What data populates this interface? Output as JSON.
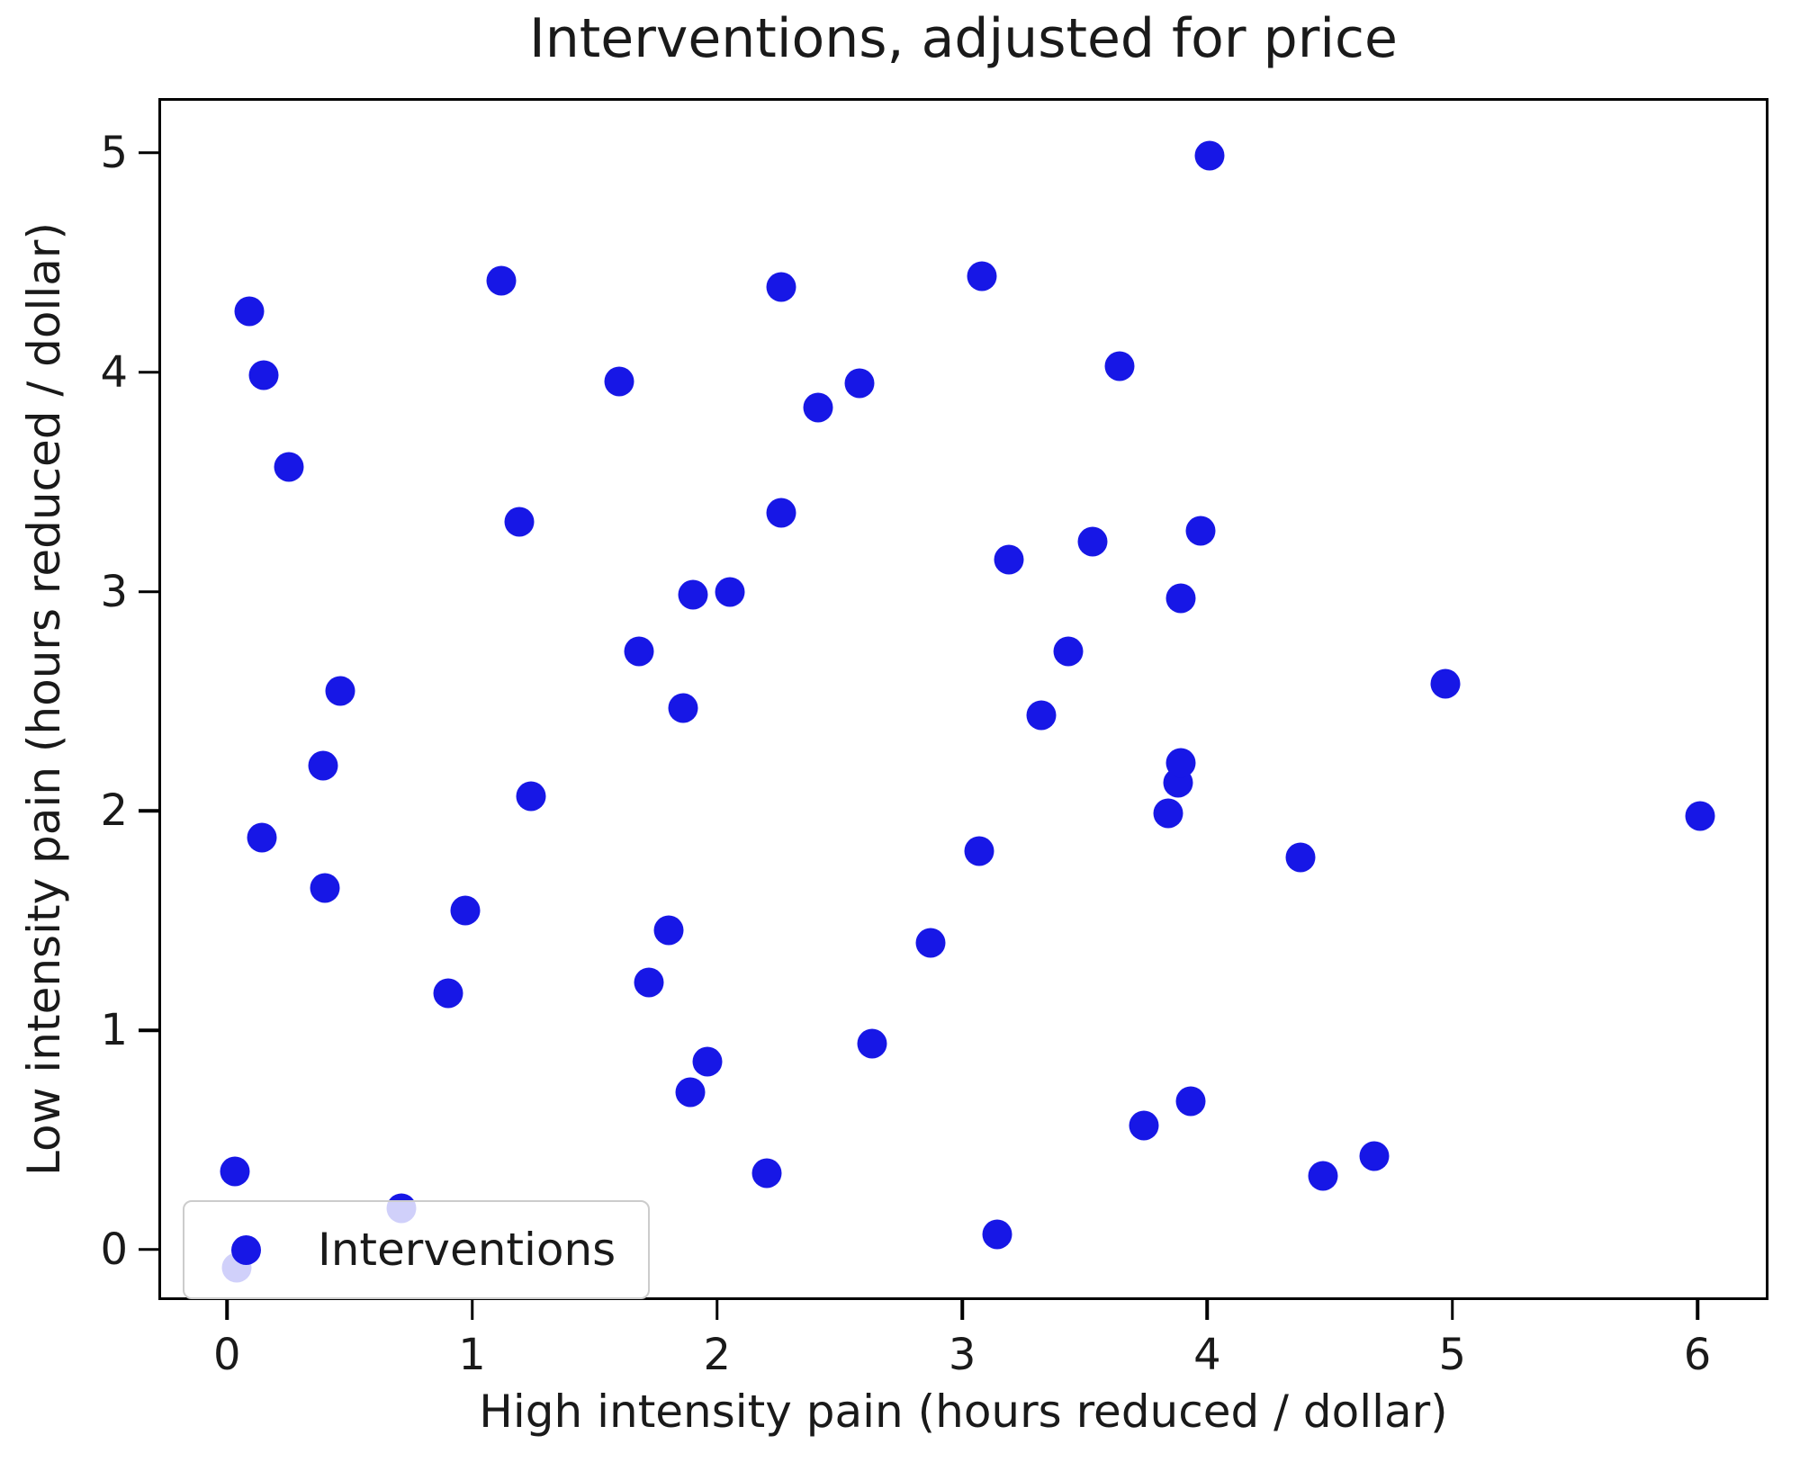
{
  "chart": {
    "title": "Interventions, adjusted for price",
    "xlabel": "High intensity pain (hours reduced / dollar)",
    "ylabel": "Low intensity pain (hours reduced / dollar)",
    "legend": {
      "label": "Interventions"
    }
  },
  "chart_data": {
    "type": "scatter",
    "title": "Interventions, adjusted for price",
    "xlabel": "High intensity pain (hours reduced / dollar)",
    "ylabel": "Low intensity pain (hours reduced / dollar)",
    "legend_entries": [
      "Interventions"
    ],
    "legend_position": "lower left",
    "marker_color": "#1717e6",
    "marker_size_px": 33,
    "grid": false,
    "xlim": [
      -0.28,
      6.29
    ],
    "ylim": [
      -0.23,
      5.25
    ],
    "xticks": [
      0,
      1,
      2,
      3,
      4,
      5,
      6
    ],
    "yticks": [
      0,
      1,
      2,
      3,
      4,
      5
    ],
    "points": [
      [
        0.08,
        4.29
      ],
      [
        0.14,
        4.0
      ],
      [
        0.24,
        3.58
      ],
      [
        1.11,
        4.43
      ],
      [
        1.59,
        3.97
      ],
      [
        2.25,
        4.4
      ],
      [
        2.4,
        3.85
      ],
      [
        2.57,
        3.96
      ],
      [
        3.07,
        4.45
      ],
      [
        3.63,
        4.04
      ],
      [
        4.0,
        5.0
      ],
      [
        0.13,
        1.89
      ],
      [
        0.38,
        2.22
      ],
      [
        0.39,
        1.66
      ],
      [
        0.45,
        2.56
      ],
      [
        1.18,
        3.33
      ],
      [
        1.23,
        2.08
      ],
      [
        1.67,
        2.74
      ],
      [
        1.85,
        2.48
      ],
      [
        1.89,
        3.0
      ],
      [
        2.04,
        3.01
      ],
      [
        2.25,
        3.37
      ],
      [
        3.06,
        1.83
      ],
      [
        3.18,
        3.16
      ],
      [
        3.31,
        2.45
      ],
      [
        3.42,
        2.74
      ],
      [
        3.52,
        3.24
      ],
      [
        3.83,
        2.0
      ],
      [
        3.87,
        2.14
      ],
      [
        3.88,
        2.23
      ],
      [
        3.88,
        2.98
      ],
      [
        3.96,
        3.29
      ],
      [
        4.37,
        1.8
      ],
      [
        4.96,
        2.59
      ],
      [
        6.0,
        1.99
      ],
      [
        0.02,
        0.37
      ],
      [
        0.03,
        -0.07
      ],
      [
        0.7,
        0.2
      ],
      [
        0.89,
        1.18
      ],
      [
        0.96,
        1.56
      ],
      [
        1.71,
        1.23
      ],
      [
        1.79,
        1.47
      ],
      [
        1.88,
        0.73
      ],
      [
        1.95,
        0.87
      ],
      [
        2.19,
        0.36
      ],
      [
        2.62,
        0.95
      ],
      [
        2.86,
        1.41
      ],
      [
        3.13,
        0.08
      ],
      [
        3.73,
        0.58
      ],
      [
        3.92,
        0.69
      ],
      [
        4.46,
        0.35
      ],
      [
        4.67,
        0.44
      ]
    ]
  }
}
